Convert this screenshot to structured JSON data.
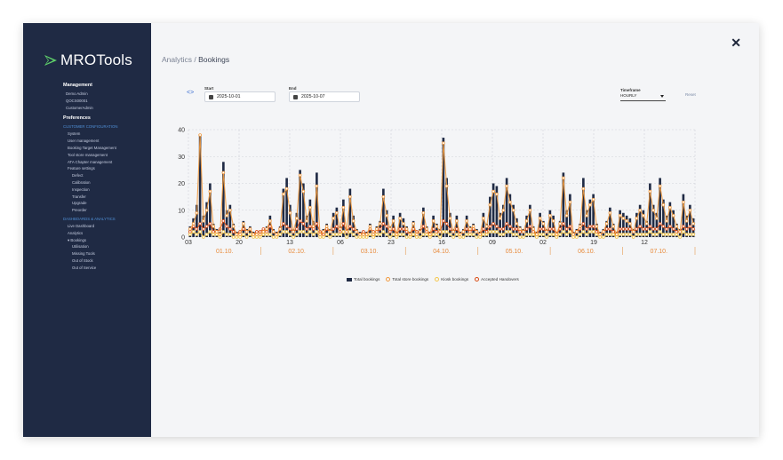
{
  "app": {
    "brand": "MROTools"
  },
  "sidebar": {
    "management_title": "Management",
    "management_items": [
      "Demo Admin",
      "QOCS00001",
      "CustomerAdmin"
    ],
    "preferences_title": "Preferences",
    "customer_config_title": "CUSTOMER CONFIGURATION",
    "config_items": [
      {
        "label": "System",
        "level": 1
      },
      {
        "label": "User management",
        "level": 1
      },
      {
        "label": "Booking Target Management",
        "level": 1
      },
      {
        "label": "Tool store management",
        "level": 1
      },
      {
        "label": "ATA Chapter management",
        "level": 1
      },
      {
        "label": "Feature settings",
        "level": 1
      },
      {
        "label": "Defect",
        "level": 2
      },
      {
        "label": "Calibration",
        "level": 2
      },
      {
        "label": "Inspection",
        "level": 2
      },
      {
        "label": "Transfer",
        "level": 2
      },
      {
        "label": "Upgrade",
        "level": 2
      },
      {
        "label": "Preorder",
        "level": 2
      }
    ],
    "dashboards_title": "DASHBOARDS & ANALYTICS",
    "dashboard_items": [
      {
        "label": "Live Dashboard",
        "level": 1
      },
      {
        "label": "Analytics",
        "level": 1
      },
      {
        "label": "▾ Bookings",
        "level": 1
      },
      {
        "label": "Utilisation",
        "level": 2
      },
      {
        "label": "Missing Tools",
        "level": 2
      },
      {
        "label": "Out of Stock",
        "level": 2
      },
      {
        "label": "Out of Service",
        "level": 2
      }
    ]
  },
  "header": {
    "breadcrumb_parent": "Analytics /",
    "breadcrumb_current": "Bookings"
  },
  "filters": {
    "start_label": "Start",
    "start_value": "2025-10-01",
    "end_label": "End",
    "end_value": "2025-10-07",
    "timeframe_label": "Timeframe",
    "timeframe_value": "HOURLY",
    "reset_label": "Reset",
    "toggle_icon": "code-brackets-icon",
    "close_icon": "close-icon"
  },
  "chart_data": {
    "type": "bar",
    "ylim": [
      0,
      40
    ],
    "yticks": [
      0,
      10,
      20,
      30,
      40
    ],
    "xtick_labels": [
      "03",
      "20",
      "13",
      "06",
      "23",
      "16",
      "09",
      "02",
      "19",
      "12"
    ],
    "date_labels": [
      "01.10.",
      "02.10.",
      "03.10.",
      "04.10.",
      "05.10.",
      "06.10.",
      "07.10."
    ],
    "grid": true,
    "legend_position": "bottom",
    "series": [
      {
        "name": "Total bookings",
        "color": "#1f2a44",
        "values": [
          4,
          7,
          12,
          38,
          8,
          13,
          20,
          5,
          3,
          2,
          28,
          10,
          12,
          5,
          2,
          1,
          6,
          3,
          4,
          2,
          1,
          2,
          3,
          4,
          8,
          3,
          2,
          4,
          18,
          22,
          12,
          3,
          9,
          25,
          20,
          8,
          14,
          6,
          24,
          2,
          3,
          5,
          3,
          9,
          11,
          4,
          14,
          3,
          18,
          8,
          3,
          2,
          1,
          2,
          5,
          2,
          4,
          6,
          18,
          10,
          4,
          8,
          2,
          9,
          7,
          4,
          2,
          6,
          1,
          3,
          11,
          4,
          2,
          8,
          5,
          3,
          37,
          22,
          9,
          3,
          8,
          2,
          3,
          8,
          4,
          5,
          3,
          2,
          9,
          5,
          15,
          20,
          19,
          9,
          12,
          22,
          16,
          12,
          7,
          4,
          3,
          8,
          12,
          4,
          2,
          9,
          6,
          3,
          10,
          8,
          2,
          6,
          24,
          10,
          16,
          2,
          3,
          5,
          22,
          10,
          14,
          16,
          5,
          2,
          3,
          6,
          11,
          5,
          2,
          10,
          9,
          8,
          7,
          3,
          9,
          12,
          10,
          6,
          20,
          12,
          9,
          22,
          14,
          8,
          13,
          10,
          5,
          3,
          16,
          8,
          12,
          7
        ]
      },
      {
        "name": "Total store bookings",
        "color": "#f19a3e",
        "values": [
          3,
          5,
          9,
          38,
          6,
          10,
          17,
          4,
          2,
          1,
          24,
          8,
          10,
          4,
          1,
          1,
          5,
          2,
          3,
          1,
          1,
          1,
          2,
          3,
          6,
          2,
          1,
          3,
          16,
          18,
          9,
          2,
          7,
          23,
          17,
          6,
          11,
          4,
          19,
          1,
          2,
          4,
          2,
          7,
          9,
          3,
          11,
          2,
          15,
          6,
          2,
          1,
          1,
          1,
          4,
          1,
          3,
          5,
          15,
          8,
          3,
          6,
          1,
          7,
          5,
          3,
          1,
          5,
          1,
          2,
          9,
          3,
          1,
          6,
          4,
          2,
          35,
          19,
          7,
          2,
          6,
          1,
          2,
          6,
          3,
          4,
          2,
          1,
          7,
          4,
          12,
          17,
          16,
          7,
          10,
          19,
          13,
          10,
          5,
          3,
          2,
          6,
          10,
          3,
          1,
          7,
          5,
          2,
          8,
          6,
          1,
          5,
          22,
          8,
          13,
          1,
          2,
          4,
          18,
          8,
          12,
          14,
          4,
          1,
          2,
          5,
          9,
          4,
          1,
          8,
          7,
          6,
          5,
          2,
          7,
          10,
          8,
          5,
          17,
          10,
          7,
          19,
          12,
          6,
          11,
          8,
          4,
          2,
          13,
          6,
          10,
          5
        ]
      },
      {
        "name": "Kiosk bookings",
        "color": "#f5c64a",
        "values": [
          1,
          2,
          1,
          2,
          0,
          1,
          2,
          1,
          1,
          0,
          2,
          1,
          1,
          0,
          0,
          0,
          1,
          0,
          1,
          0,
          0,
          0,
          1,
          1,
          1,
          0,
          0,
          1,
          2,
          2,
          1,
          0,
          1,
          2,
          2,
          1,
          2,
          1,
          2,
          0,
          0,
          1,
          0,
          1,
          1,
          1,
          2,
          0,
          2,
          1,
          0,
          0,
          0,
          0,
          1,
          0,
          1,
          1,
          2,
          1,
          0,
          1,
          0,
          1,
          1,
          0,
          0,
          1,
          0,
          0,
          1,
          1,
          0,
          1,
          1,
          0,
          2,
          2,
          1,
          0,
          1,
          0,
          0,
          1,
          1,
          1,
          0,
          0,
          1,
          1,
          2,
          2,
          2,
          1,
          1,
          2,
          2,
          1,
          1,
          0,
          0,
          1,
          1,
          1,
          0,
          1,
          1,
          0,
          1,
          1,
          0,
          1,
          2,
          1,
          2,
          0,
          0,
          1,
          2,
          1,
          2,
          2,
          1,
          0,
          0,
          1,
          1,
          1,
          0,
          1,
          1,
          1,
          1,
          0,
          1,
          1,
          1,
          1,
          2,
          1,
          1,
          2,
          1,
          1,
          1,
          1,
          1,
          0,
          2,
          1,
          1,
          1
        ]
      },
      {
        "name": "Accepted Handovers",
        "color": "#d94a12",
        "values": [
          2,
          4,
          3,
          5,
          3,
          4,
          5,
          2,
          2,
          3,
          6,
          4,
          3,
          2,
          1,
          2,
          3,
          2,
          3,
          1,
          2,
          2,
          3,
          2,
          4,
          2,
          1,
          3,
          5,
          4,
          3,
          2,
          3,
          6,
          5,
          3,
          4,
          3,
          5,
          2,
          1,
          3,
          2,
          3,
          4,
          2,
          5,
          2,
          4,
          3,
          2,
          1,
          2,
          1,
          3,
          2,
          2,
          3,
          5,
          4,
          2,
          3,
          1,
          3,
          3,
          2,
          1,
          3,
          2,
          2,
          4,
          2,
          1,
          3,
          2,
          2,
          6,
          5,
          3,
          2,
          3,
          1,
          2,
          3,
          2,
          3,
          2,
          1,
          3,
          2,
          4,
          5,
          4,
          3,
          3,
          5,
          4,
          3,
          3,
          2,
          2,
          3,
          4,
          2,
          1,
          3,
          3,
          2,
          3,
          3,
          1,
          3,
          5,
          3,
          4,
          1,
          2,
          3,
          5,
          3,
          4,
          4,
          2,
          1,
          2,
          3,
          3,
          2,
          1,
          3,
          3,
          3,
          3,
          2,
          3,
          4,
          3,
          3,
          4,
          3,
          3,
          5,
          4,
          3,
          4,
          3,
          2,
          2,
          4,
          3,
          4,
          3
        ]
      }
    ]
  }
}
